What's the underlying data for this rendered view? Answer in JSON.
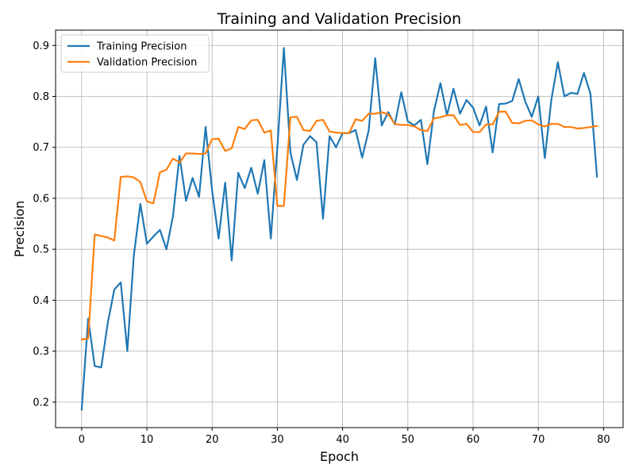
{
  "chart_data": {
    "type": "line",
    "title": "Training and Validation Precision",
    "xlabel": "Epoch",
    "ylabel": "Precision",
    "xlim": [
      -4,
      83
    ],
    "ylim": [
      0.15,
      0.93
    ],
    "xticks": [
      0,
      10,
      20,
      30,
      40,
      50,
      60,
      70,
      80
    ],
    "yticks": [
      0.2,
      0.3,
      0.4,
      0.5,
      0.6,
      0.7,
      0.8,
      0.9
    ],
    "xtick_labels": [
      "0",
      "10",
      "20",
      "30",
      "40",
      "50",
      "60",
      "70",
      "80"
    ],
    "ytick_labels": [
      "0.2",
      "0.3",
      "0.4",
      "0.5",
      "0.6",
      "0.7",
      "0.8",
      "0.9"
    ],
    "grid": true,
    "legend_position": "upper-left",
    "x": [
      0,
      1,
      2,
      3,
      4,
      5,
      6,
      7,
      8,
      9,
      10,
      11,
      12,
      13,
      14,
      15,
      16,
      17,
      18,
      19,
      20,
      21,
      22,
      23,
      24,
      25,
      26,
      27,
      28,
      29,
      30,
      31,
      32,
      33,
      34,
      35,
      36,
      37,
      38,
      39,
      40,
      41,
      42,
      43,
      44,
      45,
      46,
      47,
      48,
      49,
      50,
      51,
      52,
      53,
      54,
      55,
      56,
      57,
      58,
      59,
      60,
      61,
      62,
      63,
      64,
      65,
      66,
      67,
      68,
      69,
      70,
      71,
      72,
      73,
      74,
      75,
      76,
      77,
      78,
      79
    ],
    "series": [
      {
        "name": "Training Precision",
        "color": "#1f77b4",
        "values": [
          0.185,
          0.364,
          0.271,
          0.268,
          0.355,
          0.421,
          0.435,
          0.3,
          0.488,
          0.589,
          0.511,
          0.525,
          0.538,
          0.5,
          0.565,
          0.683,
          0.595,
          0.64,
          0.603,
          0.74,
          0.615,
          0.521,
          0.631,
          0.478,
          0.65,
          0.62,
          0.66,
          0.609,
          0.675,
          0.521,
          0.7,
          0.895,
          0.69,
          0.636,
          0.705,
          0.722,
          0.71,
          0.56,
          0.722,
          0.7,
          0.728,
          0.728,
          0.734,
          0.68,
          0.733,
          0.875,
          0.743,
          0.769,
          0.745,
          0.808,
          0.751,
          0.743,
          0.754,
          0.667,
          0.771,
          0.826,
          0.763,
          0.815,
          0.766,
          0.793,
          0.778,
          0.743,
          0.78,
          0.69,
          0.785,
          0.786,
          0.791,
          0.834,
          0.79,
          0.76,
          0.8,
          0.679,
          0.793,
          0.867,
          0.8,
          0.807,
          0.805,
          0.846,
          0.805,
          0.642
        ]
      },
      {
        "name": "Validation Precision",
        "color": "#ff7f0e",
        "values": [
          0.323,
          0.325,
          0.529,
          0.526,
          0.523,
          0.517,
          0.642,
          0.643,
          0.641,
          0.632,
          0.594,
          0.59,
          0.651,
          0.656,
          0.678,
          0.67,
          0.688,
          0.688,
          0.687,
          0.688,
          0.716,
          0.717,
          0.693,
          0.698,
          0.74,
          0.736,
          0.753,
          0.754,
          0.729,
          0.733,
          0.585,
          0.585,
          0.759,
          0.76,
          0.734,
          0.732,
          0.752,
          0.754,
          0.731,
          0.729,
          0.728,
          0.728,
          0.755,
          0.752,
          0.766,
          0.766,
          0.769,
          0.765,
          0.746,
          0.744,
          0.744,
          0.741,
          0.734,
          0.732,
          0.757,
          0.759,
          0.763,
          0.763,
          0.744,
          0.746,
          0.73,
          0.73,
          0.745,
          0.745,
          0.77,
          0.77,
          0.748,
          0.747,
          0.752,
          0.753,
          0.745,
          0.741,
          0.746,
          0.746,
          0.74,
          0.74,
          0.737,
          0.738,
          0.74,
          0.742
        ]
      }
    ]
  }
}
